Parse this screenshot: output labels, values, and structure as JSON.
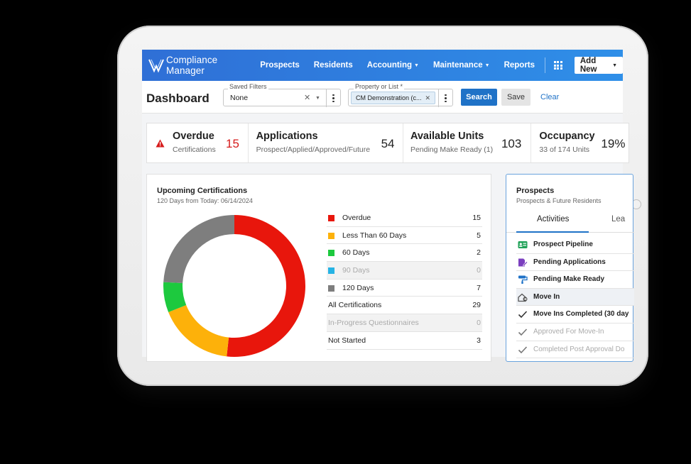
{
  "app": {
    "name": "Compliance Manager"
  },
  "nav": {
    "items": [
      {
        "label": "Prospects",
        "dropdown": false
      },
      {
        "label": "Residents",
        "dropdown": false
      },
      {
        "label": "Accounting",
        "dropdown": true
      },
      {
        "label": "Maintenance",
        "dropdown": true
      },
      {
        "label": "Reports",
        "dropdown": false
      }
    ],
    "add_new": "Add New"
  },
  "filters": {
    "page_title": "Dashboard",
    "saved_filters_label": "Saved Filters",
    "saved_filters_value": "None",
    "property_label": "Property or List *",
    "property_chip": "CM Demonstration (c...",
    "search": "Search",
    "save": "Save",
    "clear": "Clear"
  },
  "stats": [
    {
      "title": "Overdue",
      "sub": "Certifications",
      "value": "15"
    },
    {
      "title": "Applications",
      "sub": "Prospect/Applied/Approved/Future",
      "value": "54"
    },
    {
      "title": "Available Units",
      "sub": "Pending Make Ready (1)",
      "value": "103"
    },
    {
      "title": "Occupancy",
      "sub": "33 of 174 Units",
      "value": "19%"
    }
  ],
  "certifications": {
    "title": "Upcoming Certifications",
    "subtitle": "120 Days from Today: 06/14/2024",
    "legend": [
      {
        "label": "Overdue",
        "value": "15",
        "color": "#e8160c"
      },
      {
        "label": "Less Than 60 Days",
        "value": "5",
        "color": "#fdb10a"
      },
      {
        "label": "60 Days",
        "value": "2",
        "color": "#1dc93e"
      },
      {
        "label": "90 Days",
        "value": "0",
        "color": "#26b3e4"
      },
      {
        "label": "120 Days",
        "value": "7",
        "color": "#7e7e7e"
      },
      {
        "label": "All Certifications",
        "value": "29"
      },
      {
        "label": "In-Progress Questionnaires",
        "value": "0"
      },
      {
        "label": "Not Started",
        "value": "3"
      }
    ]
  },
  "chart_data": {
    "type": "pie",
    "categories": [
      "Overdue",
      "Less Than 60 Days",
      "60 Days",
      "90 Days",
      "120 Days"
    ],
    "values": [
      15,
      5,
      2,
      0,
      7
    ],
    "colors": [
      "#e8160c",
      "#fdb10a",
      "#1dc93e",
      "#26b3e4",
      "#7e7e7e"
    ],
    "title": "Upcoming Certifications",
    "subtitle": "120 Days from Today: 06/14/2024",
    "donut": true
  },
  "prospects": {
    "title": "Prospects",
    "subtitle": "Prospects & Future Residents",
    "tabs": [
      "Activities",
      "Lea"
    ],
    "activities": [
      {
        "label": "Prospect Pipeline",
        "icon": "id-card-icon",
        "color": "#22a35a"
      },
      {
        "label": "Pending Applications",
        "icon": "application-edit-icon",
        "color": "#7b3fbf"
      },
      {
        "label": "Pending Make Ready",
        "icon": "paint-roller-icon",
        "color": "#1f72c7"
      },
      {
        "label": "Move In",
        "icon": "move-in-icon",
        "color": "#555555"
      },
      {
        "label": "Move Ins Completed (30 day",
        "icon": "check-icon",
        "color": "#333333"
      },
      {
        "label": "Approved For Move-In",
        "icon": "check-icon",
        "color": "#777777"
      },
      {
        "label": "Completed Post Approval Do",
        "icon": "check-icon",
        "color": "#777777"
      }
    ]
  }
}
